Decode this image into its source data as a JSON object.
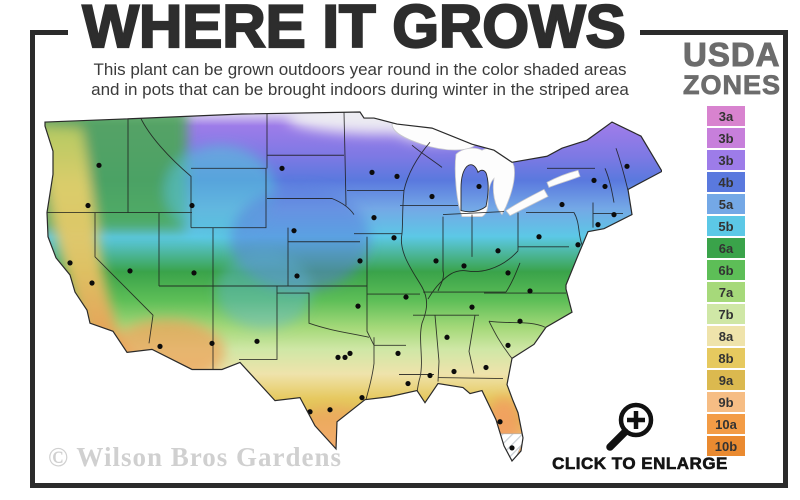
{
  "title": "WHERE IT GROWS",
  "subtitle": {
    "line1": "This plant can be grown outdoors year round in the color shaded areas",
    "line2": "and in pots that can be brought indoors during winter in the striped area"
  },
  "legend": {
    "heading_line1": "USDA",
    "heading_line2": "ZONES",
    "zones": [
      {
        "label": "3a",
        "color": "#d883cf"
      },
      {
        "label": "3b",
        "color": "#c77fdb"
      },
      {
        "label": "3b",
        "color": "#9d7ce9"
      },
      {
        "label": "4b",
        "color": "#5a79de"
      },
      {
        "label": "5a",
        "color": "#74a8e6"
      },
      {
        "label": "5b",
        "color": "#5cc8e6"
      },
      {
        "label": "6a",
        "color": "#3aa34a"
      },
      {
        "label": "6b",
        "color": "#5dbe57"
      },
      {
        "label": "7a",
        "color": "#a6d97a"
      },
      {
        "label": "7b",
        "color": "#cfe7a6"
      },
      {
        "label": "8a",
        "color": "#efe3ab"
      },
      {
        "label": "8b",
        "color": "#e6c95f"
      },
      {
        "label": "9a",
        "color": "#dbb94f"
      },
      {
        "label": "9b",
        "color": "#f6bd84"
      },
      {
        "label": "10a",
        "color": "#f39c46"
      },
      {
        "label": "10b",
        "color": "#ea8a30"
      }
    ]
  },
  "map": {
    "description": "USDA plant hardiness zones map of the continental United States, colored from zone 3 (north, purple) to zone 10 (south, orange), with white striped area in south Florida and black dots marking cities",
    "city_dots": [
      [
        57,
        55
      ],
      [
        46,
        95
      ],
      [
        28,
        152
      ],
      [
        50,
        172
      ],
      [
        70,
        225
      ],
      [
        88,
        160
      ],
      [
        118,
        235
      ],
      [
        150,
        95
      ],
      [
        152,
        162
      ],
      [
        170,
        232
      ],
      [
        215,
        230
      ],
      [
        240,
        58
      ],
      [
        252,
        120
      ],
      [
        255,
        165
      ],
      [
        330,
        62
      ],
      [
        332,
        107
      ],
      [
        318,
        150
      ],
      [
        316,
        195
      ],
      [
        308,
        242
      ],
      [
        296,
        246
      ],
      [
        303,
        246
      ],
      [
        268,
        300
      ],
      [
        288,
        298
      ],
      [
        320,
        286
      ],
      [
        355,
        66
      ],
      [
        352,
        127
      ],
      [
        364,
        186
      ],
      [
        356,
        242
      ],
      [
        366,
        272
      ],
      [
        390,
        86
      ],
      [
        394,
        150
      ],
      [
        388,
        264
      ],
      [
        437,
        76
      ],
      [
        422,
        155
      ],
      [
        430,
        196
      ],
      [
        405,
        226
      ],
      [
        412,
        260
      ],
      [
        456,
        140
      ],
      [
        444,
        256
      ],
      [
        458,
        310
      ],
      [
        470,
        336
      ],
      [
        466,
        234
      ],
      [
        478,
        210
      ],
      [
        488,
        180
      ],
      [
        466,
        162
      ],
      [
        497,
        126
      ],
      [
        520,
        94
      ],
      [
        585,
        56
      ],
      [
        552,
        70
      ],
      [
        563,
        76
      ],
      [
        572,
        104
      ],
      [
        556,
        114
      ],
      [
        536,
        134
      ]
    ]
  },
  "watermark": "© Wilson Bros Gardens",
  "enlarge": {
    "label": "CLICK TO ENLARGE"
  }
}
